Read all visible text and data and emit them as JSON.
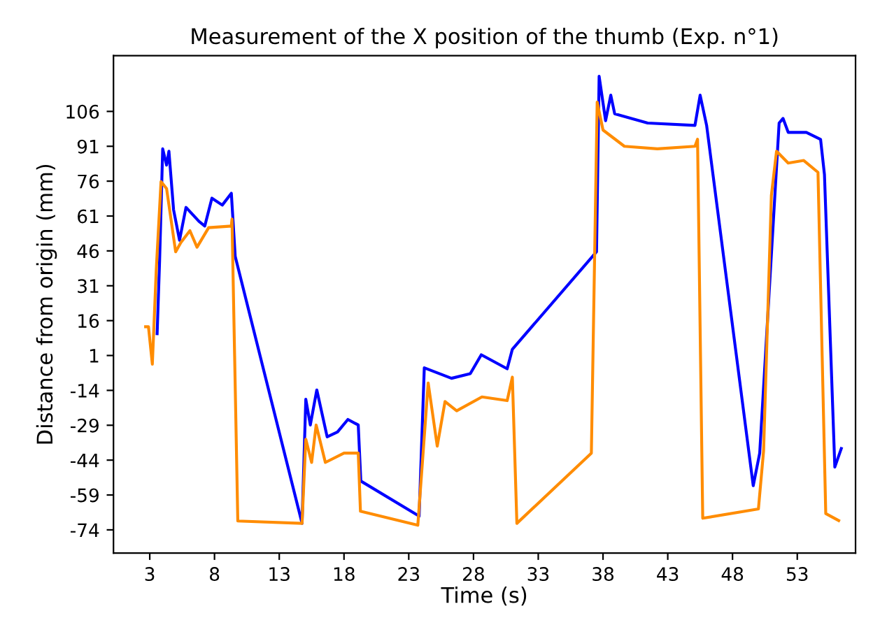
{
  "chart_data": {
    "type": "line",
    "title": "Measurement of the X position of the thumb (Exp. n°1)",
    "xlabel": "Time (s)",
    "ylabel": "Distance from origin (mm)",
    "xlim": [
      0.2,
      57.5
    ],
    "ylim": [
      -84,
      130
    ],
    "xticks": [
      3,
      8,
      13,
      18,
      23,
      28,
      33,
      38,
      43,
      48,
      53
    ],
    "yticks": [
      106,
      91,
      76,
      61,
      46,
      31,
      16,
      1,
      -14,
      -29,
      -44,
      -59,
      -74
    ],
    "grid": false,
    "marker": "none",
    "line_style": "solid",
    "series": [
      {
        "color": "#0000ff",
        "x": [
          3.57,
          3.76,
          4.0,
          4.3,
          4.48,
          4.84,
          5.3,
          5.8,
          6.8,
          7.25,
          7.8,
          8.6,
          9.3,
          9.6,
          14.76,
          15.05,
          15.4,
          15.9,
          16.7,
          17.5,
          18.3,
          19.1,
          19.3,
          23.8,
          24.2,
          26.3,
          27.75,
          28.6,
          30.6,
          31.0,
          37.5,
          37.7,
          38.2,
          38.6,
          38.9,
          41.45,
          45.1,
          45.5,
          46.0,
          49.6,
          50.1,
          51.6,
          51.9,
          52.3,
          53.7,
          54.8,
          55.1,
          55.9,
          56.4
        ],
        "values": [
          10.4,
          41.6,
          89.9,
          82.9,
          88.9,
          63.7,
          50.6,
          64.7,
          58.7,
          56.7,
          68.7,
          65.7,
          70.8,
          43.6,
          -71.2,
          -17.8,
          -28.9,
          -13.8,
          -34,
          -31.9,
          -26.5,
          -28.9,
          -53,
          -68.1,
          -4.3,
          -8.8,
          -6.8,
          1.3,
          -4.7,
          3.7,
          45.6,
          121.1,
          102,
          113,
          105,
          101,
          100,
          113,
          100,
          -55,
          -41,
          101,
          103,
          97,
          97,
          94,
          78.8,
          -47,
          -39
        ]
      },
      {
        "color": "#ff8c00",
        "x": [
          2.68,
          2.9,
          3.2,
          3.5,
          3.87,
          4.3,
          5.0,
          5.4,
          6.1,
          6.65,
          7.55,
          9.3,
          9.35,
          9.8,
          14.76,
          15.05,
          15.5,
          15.85,
          16.56,
          18.0,
          19.1,
          19.27,
          23.7,
          24.5,
          25.2,
          25.8,
          26.7,
          28.65,
          30.6,
          31.0,
          31.35,
          37.1,
          37.55,
          38.0,
          39.65,
          42.2,
          45.1,
          45.3,
          45.7,
          50.0,
          50.4,
          51.0,
          51.4,
          52.3,
          53.5,
          54.6,
          55.2,
          56.2
        ],
        "values": [
          13.4,
          13.4,
          -2.7,
          37.6,
          75.8,
          72.8,
          45.6,
          49.6,
          54.7,
          47.6,
          56,
          56.7,
          59.7,
          -70.2,
          -71.2,
          -35,
          -45,
          -28.9,
          -45,
          -41,
          -41,
          -66,
          -72,
          -10.8,
          -38,
          -18.8,
          -22.8,
          -16.8,
          -18.4,
          -8.3,
          -71.2,
          -41,
          110,
          98,
          91,
          89.9,
          91,
          94,
          -69,
          -65,
          -40,
          69.8,
          88.9,
          83.8,
          84.9,
          79.8,
          -67,
          -70
        ]
      }
    ]
  }
}
